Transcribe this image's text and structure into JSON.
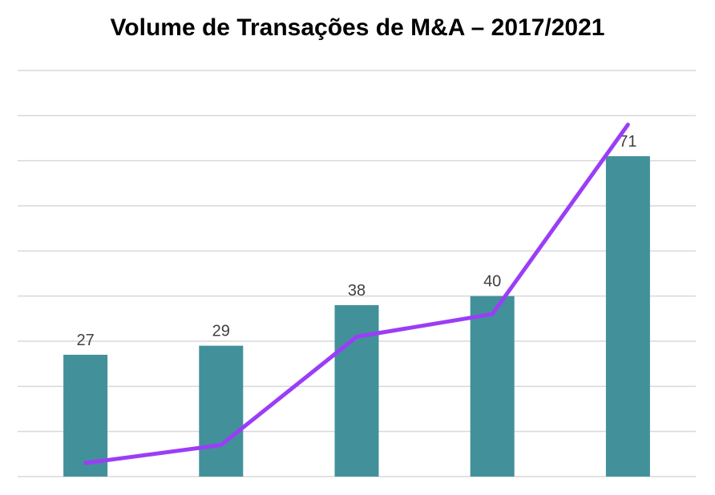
{
  "chart_data": {
    "type": "bar",
    "title": "Volume de Transações de M&A – 2017/2021",
    "categories": [
      "",
      "",
      "",
      "",
      ""
    ],
    "series": [
      {
        "values": [
          27,
          29,
          38,
          40,
          71
        ],
        "color": "#42919A"
      }
    ],
    "trend_line": {
      "values": [
        3,
        7,
        31,
        36,
        78
      ],
      "color": "#9B3DF7"
    },
    "ylim": [
      0,
      90
    ],
    "grid": true,
    "legend": "none"
  }
}
